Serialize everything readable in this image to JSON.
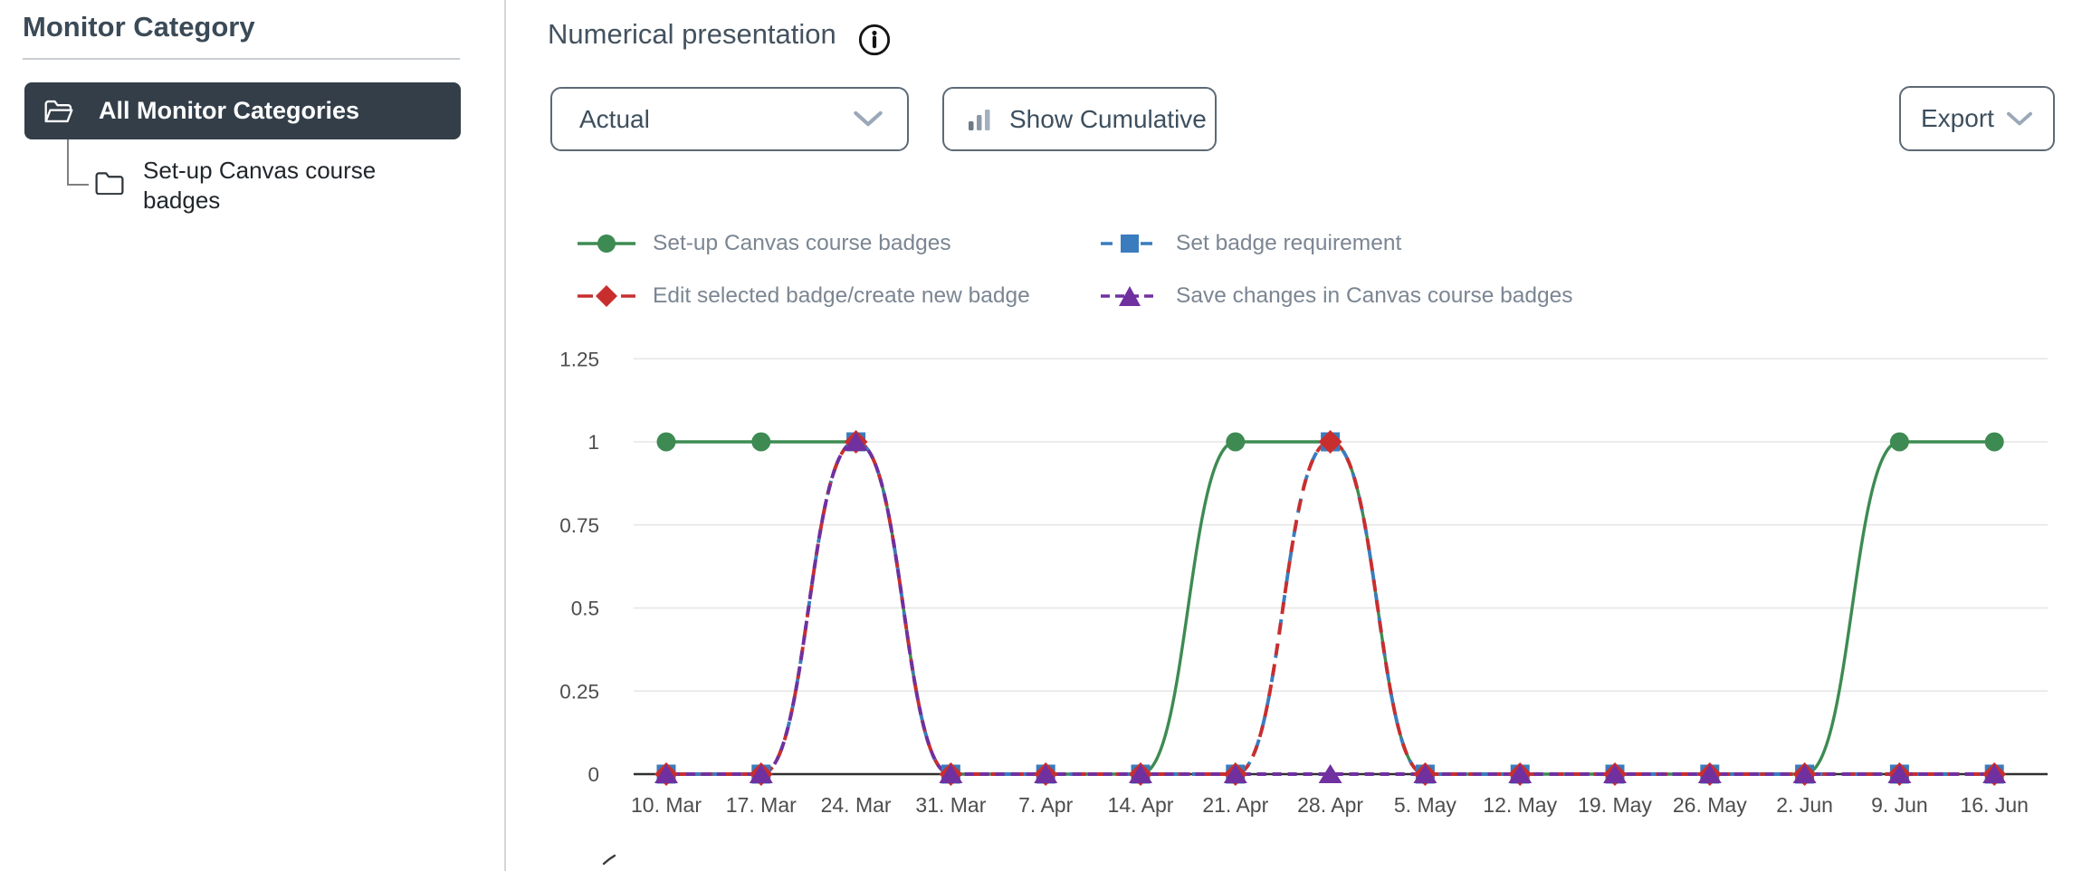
{
  "sidebar": {
    "title": "Monitor Category",
    "items": [
      {
        "label": "All Monitor Categories",
        "icon": "folder-open-icon",
        "selected": true
      },
      {
        "label": "Set-up Canvas course badges",
        "icon": "folder-icon",
        "selected": false
      }
    ]
  },
  "main": {
    "title": "Numerical presentation",
    "controls": {
      "metric_dropdown_value": "Actual",
      "show_cumulative_label": "Show Cumulative",
      "export_label": "Export"
    }
  },
  "chart_data": {
    "type": "line",
    "title": "",
    "x": [
      "10. Mar",
      "17. Mar",
      "24. Mar",
      "31. Mar",
      "7. Apr",
      "14. Apr",
      "21. Apr",
      "28. Apr",
      "5. May",
      "12. May",
      "19. May",
      "26. May",
      "2. Jun",
      "9. Jun",
      "16. Jun"
    ],
    "ylim": [
      0,
      1.25
    ],
    "yticks": [
      0,
      0.25,
      0.5,
      0.75,
      1,
      1.25
    ],
    "grid": true,
    "legend_position": "top",
    "series": [
      {
        "name": "Set-up Canvas course badges",
        "color": "#3d8b52",
        "marker": "circle",
        "dash": "solid",
        "values": [
          1,
          1,
          1,
          0,
          0,
          0,
          1,
          1,
          0,
          0,
          0,
          0,
          0,
          1,
          1
        ]
      },
      {
        "name": "Set badge requirement",
        "color": "#3a7cbe",
        "marker": "square",
        "dash": "dash-long",
        "values": [
          0,
          0,
          1,
          0,
          0,
          0,
          0,
          1,
          0,
          0,
          0,
          0,
          0,
          0,
          0
        ]
      },
      {
        "name": "Edit selected badge/create new badge",
        "color": "#c92e2e",
        "marker": "diamond",
        "dash": "dash",
        "values": [
          0,
          0,
          1,
          0,
          0,
          0,
          0,
          1,
          0,
          0,
          0,
          0,
          0,
          0,
          0
        ]
      },
      {
        "name": "Save changes in Canvas course badges",
        "color": "#7030a0",
        "marker": "triangle",
        "dash": "dash-short",
        "values": [
          0,
          0,
          1,
          0,
          0,
          0,
          0,
          0,
          0,
          0,
          0,
          0,
          0,
          0,
          0
        ]
      }
    ],
    "colors": {
      "axis_line": "#2f2f2f",
      "gridline": "#e5e5e5",
      "tick_label": "#4d4d4d",
      "legend_text": "#7b8692"
    }
  }
}
